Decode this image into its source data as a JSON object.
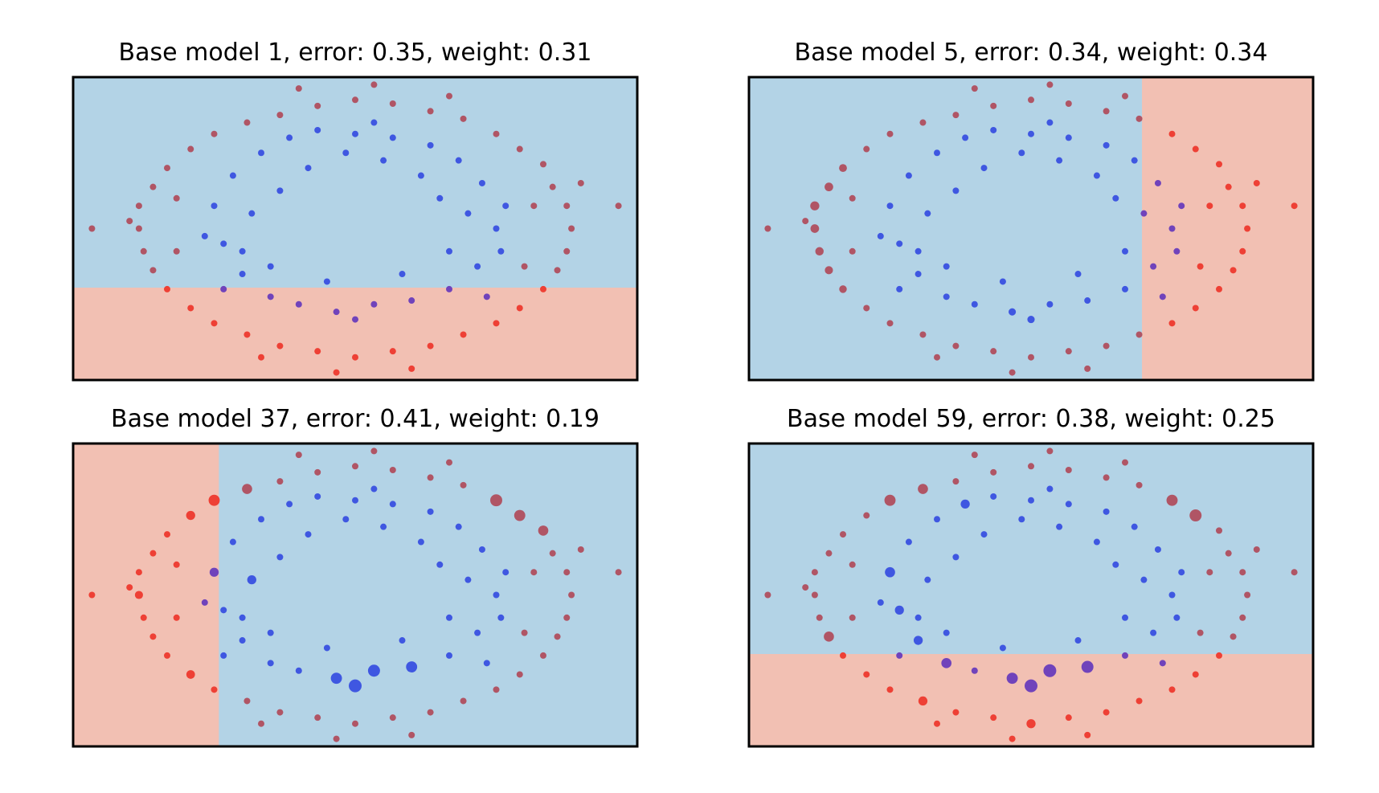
{
  "colors": {
    "region_blue": "#b3d3e6",
    "region_red": "#f2c0b3",
    "red_in_red": "#ee4035",
    "red_in_blue": "#b05565",
    "blue_in_blue": "#3f57e1",
    "blue_in_red": "#7043bb"
  },
  "chart_data": [
    {
      "type": "scatter",
      "title": "Base model 1, error: 0.35, weight: 0.31",
      "xlim": [
        -3,
        3
      ],
      "ylim": [
        -2,
        2
      ],
      "grid": false,
      "axes_ticks": false,
      "boundary": {
        "orientation": "horizontal",
        "threshold": -0.78,
        "red_side": "below"
      },
      "point_weights": {}
    },
    {
      "type": "scatter",
      "title": "Base model 5, error: 0.34, weight: 0.34",
      "xlim": [
        -3,
        3
      ],
      "ylim": [
        -2,
        2
      ],
      "grid": false,
      "axes_ticks": false,
      "boundary": {
        "orientation": "vertical",
        "threshold": 1.18,
        "red_side": "right"
      },
      "point_weights": {
        "55": 1.5,
        "56": 1.8,
        "57": 2,
        "58": 1.8,
        "59": 1.7,
        "60": 1.6,
        "61": 1.4,
        "9": 1.3,
        "35": 1.3
      }
    },
    {
      "type": "scatter",
      "title": "Base model 37, error: 0.41, weight: 0.19",
      "xlim": [
        -3,
        3
      ],
      "ylim": [
        -2,
        2
      ],
      "grid": false,
      "axes_ticks": false,
      "boundary": {
        "orientation": "vertical",
        "threshold": -1.45,
        "red_side": "left"
      },
      "point_weights": {
        "0": 2,
        "9": 3,
        "11": 3.5,
        "13": 3,
        "23": 2,
        "35": 4,
        "43": 2.5,
        "44": 3,
        "45": 3.5,
        "52": 2.5,
        "53": 3,
        "54": 2,
        "58": 1.6,
        "62": 1.8
      }
    },
    {
      "type": "scatter",
      "title": "Base model 59, error: 0.38, weight: 0.25",
      "xlim": [
        -3,
        3
      ],
      "ylim": [
        -2,
        2
      ],
      "grid": false,
      "axes_ticks": false,
      "boundary": {
        "orientation": "horizontal",
        "threshold": -0.78,
        "red_side": "below"
      },
      "point_weights": {
        "0": 2.5,
        "1": 2,
        "3": 2,
        "5": 2.5,
        "6": 2,
        "9": 3,
        "11": 4,
        "13": 3.5,
        "35": 4,
        "44": 3.5,
        "45": 3,
        "52": 2.5,
        "53": 3,
        "60": 2.5,
        "64": 2,
        "67": 2
      }
    }
  ],
  "points": [
    [
      -1.5,
      0.3,
      1
    ],
    [
      -1.4,
      -0.2,
      1
    ],
    [
      -1.3,
      0.7,
      1
    ],
    [
      -1.2,
      -0.6,
      1
    ],
    [
      -1.0,
      1.0,
      1
    ],
    [
      -0.9,
      -0.9,
      1
    ],
    [
      -0.7,
      1.2,
      1
    ],
    [
      -0.6,
      -1.0,
      1
    ],
    [
      -0.4,
      1.3,
      1
    ],
    [
      -0.2,
      -1.1,
      1
    ],
    [
      0.0,
      1.25,
      1
    ],
    [
      0.2,
      -1.0,
      1
    ],
    [
      0.4,
      1.2,
      1
    ],
    [
      0.6,
      -0.95,
      1
    ],
    [
      0.8,
      1.1,
      1
    ],
    [
      1.0,
      -0.8,
      1
    ],
    [
      1.1,
      0.9,
      1
    ],
    [
      1.3,
      -0.5,
      1
    ],
    [
      1.35,
      0.6,
      1
    ],
    [
      1.5,
      0.0,
      1
    ],
    [
      1.6,
      0.3,
      1
    ],
    [
      1.55,
      -0.3,
      1
    ],
    [
      -1.6,
      -0.1,
      1
    ],
    [
      -1.1,
      0.2,
      1
    ],
    [
      -0.8,
      0.5,
      1
    ],
    [
      0.9,
      0.4,
      1
    ],
    [
      1.0,
      -0.3,
      1
    ],
    [
      -0.5,
      0.8,
      1
    ],
    [
      0.3,
      0.9,
      1
    ],
    [
      -0.3,
      -0.7,
      1
    ],
    [
      0.5,
      -0.6,
      1
    ],
    [
      1.2,
      0.2,
      1
    ],
    [
      -1.2,
      -0.3,
      1
    ],
    [
      -0.9,
      -0.5,
      1
    ],
    [
      0.7,
      0.7,
      1
    ],
    [
      0.0,
      -1.2,
      1
    ],
    [
      -0.1,
      1.0,
      1
    ],
    [
      1.4,
      -0.9,
      1
    ],
    [
      -1.4,
      -0.8,
      1
    ],
    [
      0.2,
      1.4,
      1
    ],
    [
      2.3,
      0.0,
      0
    ],
    [
      2.25,
      0.3,
      0
    ],
    [
      2.1,
      0.55,
      0
    ],
    [
      2.0,
      0.85,
      0
    ],
    [
      1.75,
      1.05,
      0
    ],
    [
      1.5,
      1.25,
      0
    ],
    [
      1.15,
      1.45,
      0
    ],
    [
      0.8,
      1.55,
      0
    ],
    [
      0.4,
      1.65,
      0
    ],
    [
      0.0,
      1.7,
      0
    ],
    [
      -0.4,
      1.62,
      0
    ],
    [
      -0.8,
      1.5,
      0
    ],
    [
      -1.15,
      1.4,
      0
    ],
    [
      -1.5,
      1.25,
      0
    ],
    [
      -1.75,
      1.05,
      0
    ],
    [
      -2.0,
      0.8,
      0
    ],
    [
      -2.15,
      0.55,
      0
    ],
    [
      -2.3,
      0.3,
      0
    ],
    [
      -2.3,
      0.0,
      0
    ],
    [
      -2.25,
      -0.3,
      0
    ],
    [
      -2.15,
      -0.55,
      0
    ],
    [
      -2.0,
      -0.8,
      0
    ],
    [
      -1.75,
      -1.05,
      0
    ],
    [
      -1.5,
      -1.25,
      0
    ],
    [
      -1.15,
      -1.4,
      0
    ],
    [
      -0.8,
      -1.55,
      0
    ],
    [
      -0.4,
      -1.62,
      0
    ],
    [
      0.0,
      -1.7,
      0
    ],
    [
      0.4,
      -1.62,
      0
    ],
    [
      0.8,
      -1.55,
      0
    ],
    [
      1.15,
      -1.4,
      0
    ],
    [
      1.5,
      -1.25,
      0
    ],
    [
      1.75,
      -1.05,
      0
    ],
    [
      2.0,
      -0.8,
      0
    ],
    [
      2.15,
      -0.55,
      0
    ],
    [
      2.25,
      -0.3,
      0
    ],
    [
      -2.8,
      0.0,
      0
    ],
    [
      -2.4,
      0.1,
      0
    ],
    [
      2.8,
      0.3,
      0
    ],
    [
      2.4,
      0.6,
      0
    ],
    [
      1.9,
      0.3,
      0
    ],
    [
      -1.9,
      -0.3,
      0
    ],
    [
      -1.9,
      0.4,
      0
    ],
    [
      1.8,
      -0.5,
      0
    ],
    [
      0.2,
      1.9,
      0
    ],
    [
      -0.6,
      1.85,
      0
    ],
    [
      0.6,
      -1.85,
      0
    ],
    [
      -0.2,
      -1.9,
      0
    ],
    [
      1.0,
      1.75,
      0
    ],
    [
      -1.0,
      -1.7,
      0
    ]
  ]
}
